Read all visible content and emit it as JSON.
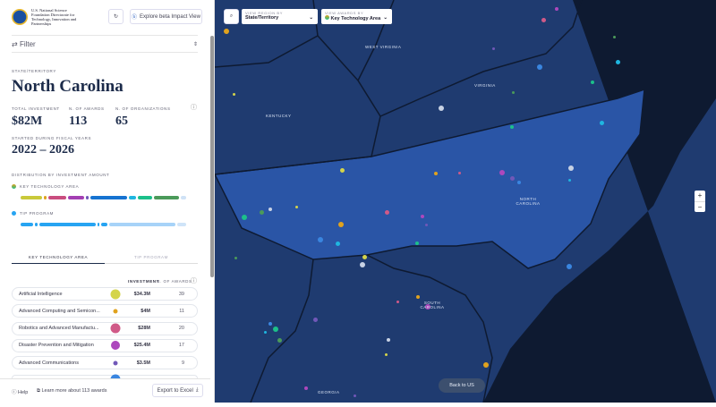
{
  "header": {
    "logo_text": "U.S. National Science Foundation Directorate for Technology, Innovation and Partnerships",
    "reset_icon": "reset-icon",
    "explore_label": "Explore beta Impact View"
  },
  "filter": {
    "label": "Filter"
  },
  "summary": {
    "region_caption": "STATE/TERRITORY",
    "region": "North Carolina",
    "total_caption": "TOTAL INVESTMENT",
    "total": "$82M",
    "awards_caption": "N. OF AWARDS",
    "awards": "113",
    "orgs_caption": "N. OF ORGANIZATIONS",
    "orgs": "65",
    "years_caption": "STARTED DURING FISCAL YEARS",
    "years": "2022 – 2026"
  },
  "distribution": {
    "title": "DISTRIBUTION BY INVESTMENT AMOUNT",
    "kta_label": "KEY TECHNOLOGY AREA",
    "tip_label": "TIP PROGRAM",
    "kta_segments": [
      {
        "color": "#c9c93a",
        "w": 34.3
      },
      {
        "color": "#e0a21e",
        "w": 4
      },
      {
        "color": "#c94d7f",
        "w": 28
      },
      {
        "color": "#a33fb3",
        "w": 25.4
      },
      {
        "color": "#7158b8",
        "w": 3.5
      },
      {
        "color": "#1673d1",
        "w": 58
      },
      {
        "color": "#1fb6e0",
        "w": 12
      },
      {
        "color": "#1cc08a",
        "w": 22
      },
      {
        "color": "#4b9a5a",
        "w": 40
      },
      {
        "color": "#cfe2f6",
        "w": 8
      }
    ],
    "tip_segments": [
      {
        "color": "#27a4f2",
        "w": 20
      },
      {
        "color": "#27a4f2",
        "w": 4
      },
      {
        "color": "#27a4f2",
        "w": 90
      },
      {
        "color": "#27a4f2",
        "w": 4
      },
      {
        "color": "#27a4f2",
        "w": 10
      },
      {
        "color": "#a7d3f8",
        "w": 106
      },
      {
        "color": "#cfe4f8",
        "w": 14
      }
    ]
  },
  "tabs": [
    {
      "label": "KEY TECHNOLOGY AREA"
    },
    {
      "label": "TIP PROGRAM"
    }
  ],
  "table": {
    "col_investment": "INVESTMENT",
    "col_awards": "N. OF AWARDS",
    "rows": [
      {
        "name": "Artificial Intelligence",
        "investment": "$34.3M",
        "awards": "39",
        "color": "#d4d44a",
        "size": 11
      },
      {
        "name": "Advanced Computing and Semicon...",
        "investment": "$4M",
        "awards": "11",
        "color": "#e0a21e",
        "size": 5
      },
      {
        "name": "Robotics and Advanced Manufactu...",
        "investment": "$28M",
        "awards": "20",
        "color": "#d05a88",
        "size": 11
      },
      {
        "name": "Disaster Prevention and Mitigation",
        "investment": "$25.4M",
        "awards": "17",
        "color": "#ad48bd",
        "size": 10
      },
      {
        "name": "Advanced Communications",
        "investment": "$3.5M",
        "awards": "9",
        "color": "#7158b8",
        "size": 5
      }
    ]
  },
  "footer": {
    "help": "Help",
    "learn": "Learn more about 113 awards",
    "export": "Export to Excel"
  },
  "map": {
    "region_by_caption": "VIEW REGION BY",
    "region_by": "State/Territory",
    "awards_by_caption": "VIEW AWARDS BY",
    "awards_by": "Key Technology Area",
    "labels": [
      "WEST VIRGINIA",
      "VIRGINIA",
      "KENTUCKY",
      "NORTH CAROLINA",
      "SOUTH CAROLINA",
      "GEORGIA"
    ],
    "zoom_in": "+",
    "zoom_out": "−",
    "back": "Back to US"
  }
}
